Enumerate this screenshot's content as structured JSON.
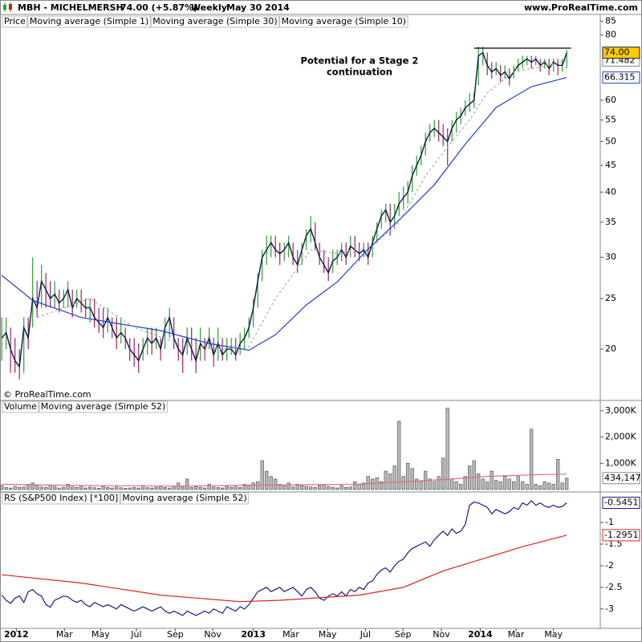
{
  "header": {
    "symbol": "MBH - MICHELMERSH",
    "change": "74.00 (+5.87%)",
    "period": "Weekly",
    "date": "May 30 2014",
    "site": "www.ProRealTime.com",
    "copyright": "© ProRealTime.com"
  },
  "chart_data": [
    {
      "type": "hlc",
      "legend_label": "Price",
      "log": true,
      "ylim": [
        16,
        87
      ],
      "yticks": [
        20,
        25,
        30,
        35,
        40,
        45,
        50,
        55,
        60,
        80,
        85
      ],
      "xlim": [
        -0.4,
        135.6
      ],
      "xticks": [
        {
          "value": 3.3,
          "label": "2012"
        },
        {
          "value": 14.2,
          "label": "Mar"
        },
        {
          "value": 22.4,
          "label": "May"
        },
        {
          "value": 30.5,
          "label": "Jul"
        },
        {
          "value": 39.3,
          "label": "Sep"
        },
        {
          "value": 47.8,
          "label": "Nov"
        },
        {
          "value": 57,
          "label": "2013"
        },
        {
          "value": 65.5,
          "label": "Mar"
        },
        {
          "value": 73.8,
          "label": "May"
        },
        {
          "value": 82.4,
          "label": "Jul"
        },
        {
          "value": 90.9,
          "label": "Sep"
        },
        {
          "value": 99.6,
          "label": "Nov"
        },
        {
          "value": 108.4,
          "label": "2014"
        },
        {
          "value": 116.5,
          "label": "Mar"
        },
        {
          "value": 125,
          "label": "May"
        }
      ],
      "up_color": "#2a9d2a",
      "down_color": "#a0205a",
      "annotation": [
        "Potential for a Stage 2",
        "continuation"
      ],
      "hlines": [
        {
          "value": 75.5,
          "x": [
            107,
            129
          ]
        }
      ],
      "x": [
        0,
        1,
        2,
        3,
        4,
        5,
        6,
        7,
        8,
        9,
        10,
        11,
        12,
        13,
        14,
        15,
        16,
        17,
        18,
        19,
        20,
        21,
        22,
        23,
        24,
        25,
        26,
        27,
        28,
        29,
        30,
        31,
        32,
        33,
        34,
        35,
        36,
        37,
        38,
        39,
        40,
        41,
        42,
        43,
        44,
        45,
        46,
        47,
        48,
        49,
        50,
        51,
        52,
        53,
        54,
        55,
        56,
        57,
        58,
        59,
        60,
        61,
        62,
        63,
        64,
        65,
        66,
        67,
        68,
        69,
        70,
        71,
        72,
        73,
        74,
        75,
        76,
        77,
        78,
        79,
        80,
        81,
        82,
        83,
        84,
        85,
        86,
        87,
        88,
        89,
        90,
        91,
        92,
        93,
        94,
        95,
        96,
        97,
        98,
        99,
        100,
        101,
        102,
        103,
        104,
        105,
        106,
        107,
        108,
        109,
        110,
        111,
        112,
        113,
        114,
        115,
        116,
        117,
        118,
        119,
        120,
        121,
        122,
        123,
        124,
        125,
        126,
        127,
        128
      ],
      "high": [
        23,
        23,
        22,
        21,
        20,
        23,
        23,
        30,
        27,
        29,
        28,
        27,
        27,
        26,
        26,
        27,
        26,
        26,
        26,
        25,
        25,
        25,
        24,
        24,
        24,
        23,
        23,
        23,
        22,
        21,
        21,
        20.5,
        21,
        22,
        22,
        22,
        21,
        23,
        24,
        23,
        21,
        21,
        22,
        22,
        21,
        22,
        21,
        22,
        21,
        22,
        21,
        21,
        21,
        21,
        21.5,
        22,
        23,
        25,
        28,
        31,
        33,
        33,
        33,
        32,
        32,
        33,
        32,
        31,
        32,
        34,
        36,
        35,
        32,
        31,
        30,
        31,
        31,
        32,
        32,
        33,
        33,
        32,
        32,
        32,
        33,
        35,
        37,
        38,
        38,
        38,
        40,
        41,
        42,
        45,
        47,
        49,
        52,
        54,
        55,
        55,
        54,
        53,
        55,
        57,
        58,
        60,
        62,
        62,
        76,
        76,
        74,
        71,
        71,
        70,
        70,
        69,
        70,
        72,
        73,
        73,
        73,
        73,
        72,
        72,
        72,
        72,
        72,
        72,
        75
      ],
      "low": [
        19,
        20,
        18,
        18,
        17.5,
        18,
        20,
        22,
        23,
        24,
        24,
        24,
        24,
        23.5,
        24,
        24,
        23,
        24,
        23.5,
        23,
        22.5,
        22,
        21.5,
        21,
        21.5,
        21,
        20,
        20.5,
        20,
        19,
        18.5,
        18,
        19,
        19.5,
        19.5,
        20,
        19,
        20,
        21,
        20,
        19,
        18,
        19.5,
        19,
        18,
        19,
        19,
        20,
        18.5,
        19,
        19,
        19,
        19.5,
        19,
        19.5,
        20,
        21,
        22,
        24,
        27,
        29,
        30,
        30,
        29,
        29.5,
        30,
        29,
        28,
        29,
        31,
        32,
        31,
        29,
        28,
        27,
        28,
        29,
        29.5,
        29,
        30,
        30,
        29.5,
        30,
        29,
        30,
        32,
        34,
        35,
        33,
        34,
        36,
        37,
        38,
        40,
        43,
        45,
        47,
        50,
        51,
        50,
        49,
        45,
        50,
        52,
        54,
        56,
        57,
        58,
        64,
        70,
        67,
        66,
        67,
        65,
        66,
        64,
        66,
        68,
        69,
        70,
        69,
        70,
        68,
        69,
        67,
        68,
        67,
        68,
        69
      ],
      "series": [
        {
          "name": "Moving average (Simple 1)",
          "color": "#0a1a4a",
          "last_label": "74.00",
          "badge_fill": "#ffcc00",
          "values": [
            21,
            21.5,
            20,
            19,
            18.5,
            22,
            21,
            25,
            24,
            27,
            26,
            25,
            25.5,
            24.5,
            25,
            26,
            24,
            25,
            24.5,
            24,
            24,
            23,
            22.5,
            22,
            23,
            22,
            21,
            21.5,
            21,
            20,
            19.5,
            19,
            20,
            21,
            20.5,
            21,
            20,
            22,
            23,
            21,
            20,
            19.5,
            21,
            20,
            19,
            20.5,
            20,
            21,
            19.5,
            20.5,
            19.5,
            20,
            20,
            19.5,
            20.5,
            21,
            22,
            24,
            27,
            30,
            31,
            32,
            31,
            30.5,
            31,
            32,
            30,
            29,
            31,
            33,
            34,
            32,
            30,
            29,
            28,
            29.5,
            30,
            31,
            30,
            31.5,
            31,
            30.5,
            31,
            30,
            32,
            34,
            36,
            37,
            35,
            36,
            38,
            39,
            40,
            43,
            45,
            47,
            50,
            52,
            53,
            52,
            51,
            50,
            53,
            55,
            56,
            58,
            59,
            60,
            73,
            74,
            70,
            68,
            69,
            67,
            68,
            66,
            68,
            70,
            71,
            72,
            71,
            72,
            70,
            71,
            69,
            71,
            70,
            70,
            74
          ]
        },
        {
          "name": "Moving average (Simple 30)",
          "color": "#2040d0",
          "last_label": "66.315",
          "x": [
            0,
            7,
            18,
            36,
            47,
            56,
            62,
            69,
            76,
            83,
            91,
            98,
            105,
            112,
            120,
            128
          ],
          "values": [
            27.7,
            24.8,
            23,
            21.7,
            20.5,
            19.9,
            21.3,
            24.3,
            26.9,
            31.1,
            36,
            41.3,
            49.4,
            58.1,
            63.7,
            66.315
          ]
        },
        {
          "name": "Moving average (Simple 10)",
          "color": "#aaaaaa",
          "dashed": true,
          "last_label": "71.482",
          "x": [
            8,
            20,
            30,
            40,
            50,
            56,
            62,
            70,
            76,
            84,
            90,
            96,
            102,
            106,
            110,
            116,
            122,
            128
          ],
          "values": [
            23,
            25,
            22,
            20.5,
            20,
            20.2,
            25,
            31,
            30.5,
            31.5,
            35,
            43,
            50,
            55,
            62,
            68,
            69.5,
            71.482
          ]
        }
      ]
    },
    {
      "type": "volume",
      "legend_label": "Volume",
      "color": "#999999",
      "ylim": [
        0,
        3300
      ],
      "yticks": [
        {
          "value": 1000,
          "label": "1,000K"
        },
        {
          "value": 2000,
          "label": "2,000K"
        },
        {
          "value": 3000,
          "label": "3,000K"
        }
      ],
      "last_label": "434,147",
      "values": [
        150,
        80,
        60,
        120,
        90,
        100,
        200,
        250,
        150,
        100,
        80,
        180,
        120,
        60,
        90,
        200,
        100,
        80,
        150,
        60,
        90,
        70,
        50,
        120,
        80,
        60,
        100,
        70,
        50,
        60,
        80,
        60,
        150,
        70,
        60,
        90,
        120,
        80,
        60,
        120,
        250,
        100,
        400,
        80,
        120,
        90,
        60,
        200,
        100,
        80,
        60,
        120,
        90,
        150,
        80,
        200,
        180,
        250,
        300,
        1100,
        700,
        500,
        400,
        200,
        150,
        250,
        100,
        200,
        150,
        120,
        100,
        80,
        150,
        200,
        120,
        90,
        60,
        150,
        80,
        100,
        300,
        200,
        250,
        500,
        400,
        450,
        300,
        700,
        600,
        900,
        2600,
        500,
        1000,
        800,
        400,
        300,
        700,
        400,
        300,
        500,
        1200,
        3100,
        400,
        300,
        200,
        500,
        900,
        1100,
        600,
        400,
        300,
        700,
        350,
        300,
        500,
        400,
        300,
        500,
        300,
        200,
        2300,
        200,
        150,
        300,
        250,
        200,
        1150,
        250,
        434.147
      ],
      "series": [
        {
          "name": "Moving average (Simple 52)",
          "color": "#e07070",
          "x": [
            0,
            20,
            40,
            60,
            80,
            100,
            110,
            120,
            128
          ],
          "values": [
            200,
            150,
            130,
            170,
            200,
            380,
            500,
            560,
            585.195
          ]
        }
      ]
    },
    {
      "type": "line",
      "ylim": [
        -3.43,
        -0.35
      ],
      "yticks": [
        -1,
        -1.5,
        -2,
        -2.5,
        -3
      ],
      "series": [
        {
          "name": "RS (S&P500 Index) [*100]",
          "color": "#1a1a8a",
          "last_label": "-0.5451",
          "values": [
            -2.68,
            -2.8,
            -2.87,
            -2.75,
            -2.7,
            -2.85,
            -2.6,
            -2.55,
            -2.65,
            -2.7,
            -2.9,
            -2.96,
            -2.8,
            -2.75,
            -2.7,
            -2.72,
            -2.8,
            -2.85,
            -2.8,
            -2.9,
            -2.95,
            -2.85,
            -2.9,
            -2.95,
            -2.9,
            -2.95,
            -3.0,
            -2.9,
            -2.95,
            -3.0,
            -3.05,
            -3.0,
            -2.95,
            -3.0,
            -3.05,
            -3.0,
            -2.95,
            -3.05,
            -3.1,
            -3.05,
            -3.1,
            -3.15,
            -3.05,
            -3.1,
            -3.15,
            -3.1,
            -3.05,
            -3.1,
            -3.0,
            -3.05,
            -3.1,
            -2.95,
            -3.0,
            -3.05,
            -2.95,
            -3.0,
            -2.9,
            -2.75,
            -2.6,
            -2.55,
            -2.5,
            -2.6,
            -2.55,
            -2.5,
            -2.6,
            -2.55,
            -2.5,
            -2.6,
            -2.7,
            -2.55,
            -2.5,
            -2.6,
            -2.75,
            -2.8,
            -2.7,
            -2.65,
            -2.7,
            -2.6,
            -2.7,
            -2.55,
            -2.6,
            -2.5,
            -2.55,
            -2.4,
            -2.35,
            -2.2,
            -2.1,
            -2.05,
            -2.15,
            -2.0,
            -1.9,
            -1.85,
            -1.7,
            -1.6,
            -1.55,
            -1.5,
            -1.45,
            -1.55,
            -1.4,
            -1.3,
            -1.2,
            -1.3,
            -1.15,
            -1.25,
            -1.2,
            -1.05,
            -0.6,
            -0.53,
            -0.55,
            -0.6,
            -0.65,
            -0.8,
            -0.7,
            -0.75,
            -0.8,
            -0.75,
            -0.65,
            -0.7,
            -0.55,
            -0.6,
            -0.5,
            -0.6,
            -0.55,
            -0.62,
            -0.65,
            -0.6,
            -0.65,
            -0.63,
            -0.5451
          ]
        },
        {
          "name": "Moving average (Simple 52)",
          "color": "#e02020",
          "last_label": "-1.2951",
          "x": [
            0,
            18,
            36,
            54,
            63,
            81,
            91,
            100,
            109,
            118,
            128
          ],
          "values": [
            -2.21,
            -2.4,
            -2.68,
            -2.83,
            -2.8,
            -2.68,
            -2.5,
            -2.12,
            -1.84,
            -1.56,
            -1.2951
          ]
        }
      ]
    }
  ]
}
